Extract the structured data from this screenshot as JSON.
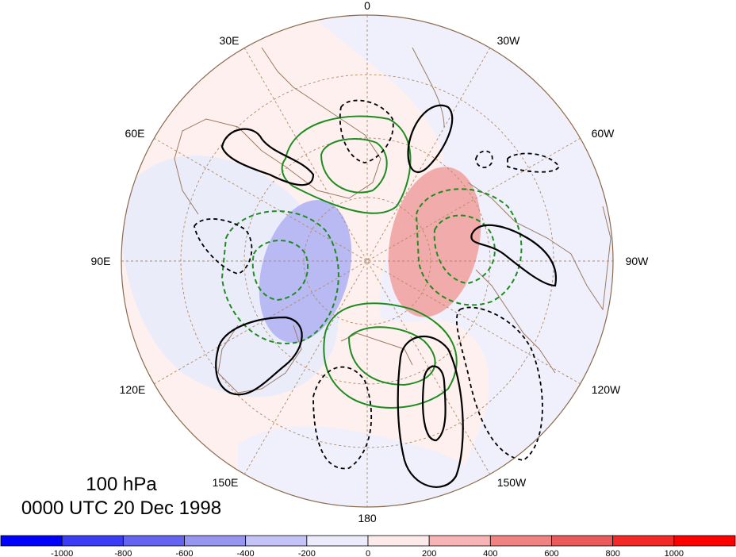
{
  "map": {
    "longitude_labels": {
      "top": "0",
      "top_left": "30E",
      "top_right": "30W",
      "upper_left": "60E",
      "upper_right": "60W",
      "left": "90E",
      "right": "90W",
      "lower_left": "120E",
      "lower_right": "120W",
      "bottom_left": "150E",
      "bottom_right": "150W",
      "bottom": "180"
    },
    "level": "100 hPa",
    "timestamp": "0000 UTC 20 Dec 1998"
  },
  "colorbar": {
    "ticks": [
      "-1000",
      "-800",
      "-600",
      "-400",
      "-200",
      "0",
      "200",
      "400",
      "600",
      "800",
      "1000"
    ],
    "colors": [
      "#0000ff",
      "#3c3cf5",
      "#6464f0",
      "#9696f0",
      "#c3c3f7",
      "#ebebfc",
      "#fdebeb",
      "#f8b4b4",
      "#f08282",
      "#eb5a5a",
      "#f52828",
      "#ff0000"
    ]
  },
  "contours": {
    "positive_black": "#000000",
    "negative_black_dashed": "#000000",
    "green": "#1e8c1e"
  }
}
